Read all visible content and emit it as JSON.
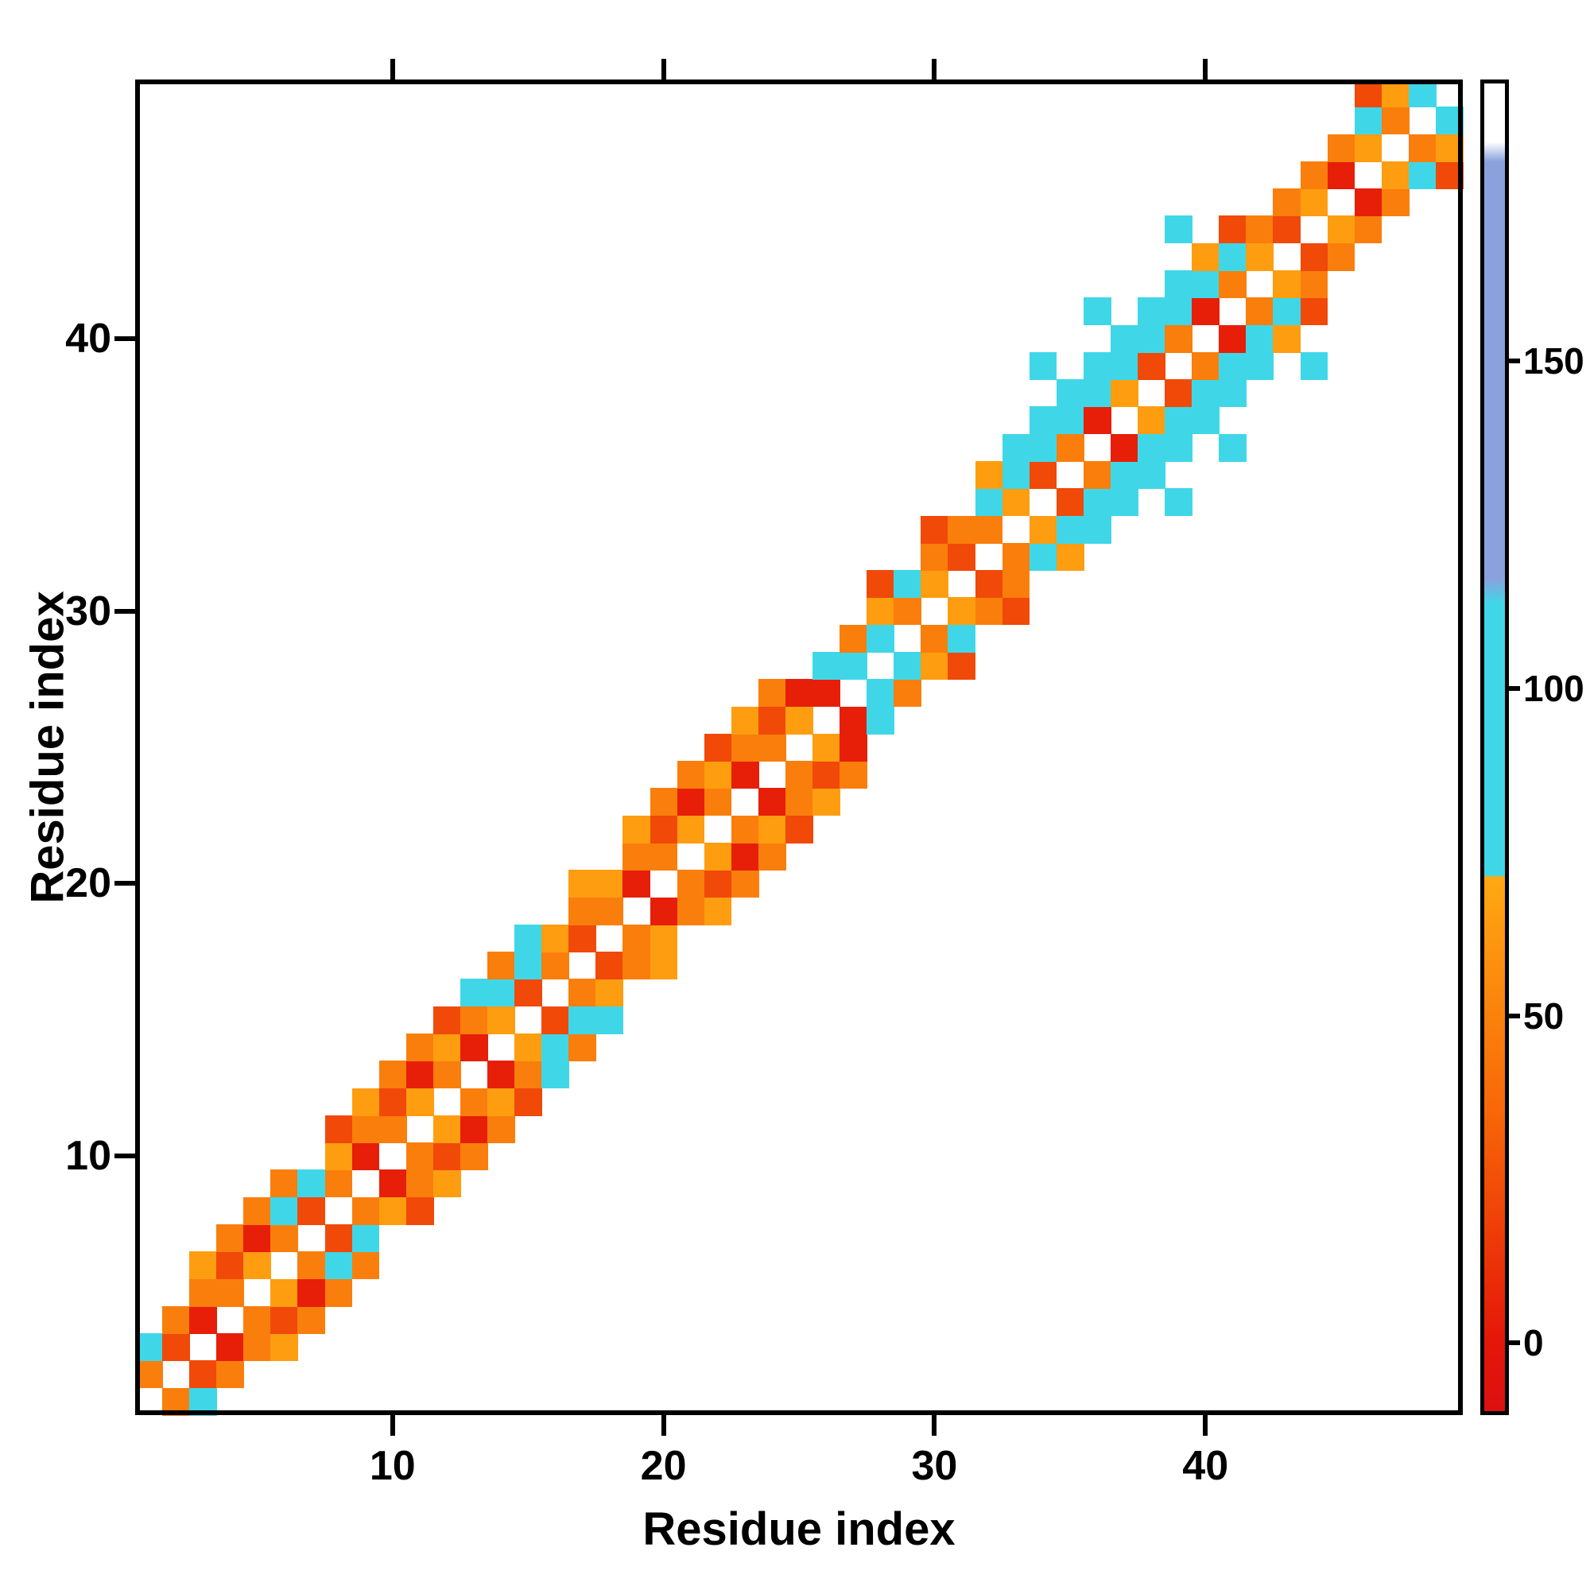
{
  "figure": {
    "background": "#ffffff",
    "x_axis": {
      "label": "Residue index",
      "ticks": [
        10,
        20,
        30,
        40
      ]
    },
    "y_axis": {
      "label": "Residue index",
      "ticks": [
        10,
        20,
        30,
        40
      ]
    },
    "colorbar": {
      "ticks": [
        0,
        50,
        100,
        150
      ],
      "vmin": -11,
      "vmax": 193,
      "stops": [
        [
          -11,
          "#dc1010"
        ],
        [
          0,
          "#e51708"
        ],
        [
          35,
          "#f76708"
        ],
        [
          71,
          "#ffa812"
        ],
        [
          71.4,
          "#3fd7e8"
        ],
        [
          113,
          "#3fd7e8"
        ],
        [
          117,
          "#8aa1dd"
        ],
        [
          181,
          "#8aa1dd"
        ],
        [
          184,
          "#ffffff"
        ],
        [
          193,
          "#ffffff"
        ]
      ]
    }
  },
  "chart_data": {
    "type": "heatmap",
    "title": "",
    "xlabel": "Residue index",
    "ylabel": "Residue index",
    "n_residues": 49,
    "x_range": [
      1,
      49
    ],
    "y_range": [
      1,
      49
    ],
    "symmetric": true,
    "diagonal": "empty",
    "legend_position": "right-colorbar",
    "grid": false,
    "cells": [
      [
        1,
        2,
        48
      ],
      [
        1,
        3,
        95
      ],
      [
        2,
        3,
        22
      ],
      [
        2,
        4,
        48
      ],
      [
        3,
        4,
        3
      ],
      [
        3,
        5,
        48
      ],
      [
        3,
        6,
        65
      ],
      [
        4,
        5,
        48
      ],
      [
        4,
        6,
        22
      ],
      [
        4,
        7,
        48
      ],
      [
        5,
        6,
        65
      ],
      [
        5,
        7,
        3
      ],
      [
        5,
        8,
        48
      ],
      [
        6,
        7,
        48
      ],
      [
        6,
        8,
        95
      ],
      [
        6,
        9,
        48
      ],
      [
        7,
        8,
        22
      ],
      [
        7,
        9,
        95
      ],
      [
        8,
        9,
        48
      ],
      [
        8,
        10,
        65
      ],
      [
        8,
        11,
        22
      ],
      [
        9,
        10,
        3
      ],
      [
        9,
        11,
        48
      ],
      [
        9,
        12,
        65
      ],
      [
        10,
        11,
        48
      ],
      [
        10,
        12,
        22
      ],
      [
        10,
        13,
        48
      ],
      [
        11,
        12,
        65
      ],
      [
        11,
        13,
        3
      ],
      [
        11,
        14,
        48
      ],
      [
        12,
        13,
        48
      ],
      [
        12,
        14,
        65
      ],
      [
        12,
        15,
        22
      ],
      [
        13,
        14,
        3
      ],
      [
        13,
        15,
        48
      ],
      [
        13,
        16,
        95
      ],
      [
        14,
        15,
        65
      ],
      [
        14,
        16,
        95
      ],
      [
        14,
        17,
        48
      ],
      [
        15,
        16,
        22
      ],
      [
        15,
        17,
        95
      ],
      [
        15,
        18,
        95
      ],
      [
        16,
        17,
        48
      ],
      [
        16,
        18,
        65
      ],
      [
        17,
        18,
        22
      ],
      [
        17,
        19,
        48
      ],
      [
        17,
        20,
        65
      ],
      [
        18,
        19,
        48
      ],
      [
        18,
        20,
        65
      ],
      [
        19,
        20,
        3
      ],
      [
        19,
        21,
        48
      ],
      [
        19,
        22,
        65
      ],
      [
        20,
        21,
        48
      ],
      [
        20,
        22,
        22
      ],
      [
        20,
        23,
        48
      ],
      [
        21,
        22,
        65
      ],
      [
        21,
        23,
        3
      ],
      [
        21,
        24,
        48
      ],
      [
        22,
        23,
        48
      ],
      [
        22,
        24,
        65
      ],
      [
        22,
        25,
        22
      ],
      [
        23,
        24,
        3
      ],
      [
        23,
        25,
        48
      ],
      [
        23,
        26,
        65
      ],
      [
        24,
        25,
        48
      ],
      [
        24,
        26,
        22
      ],
      [
        24,
        27,
        48
      ],
      [
        25,
        26,
        65
      ],
      [
        25,
        27,
        3
      ],
      [
        26,
        27,
        3
      ],
      [
        26,
        28,
        95
      ],
      [
        27,
        28,
        95
      ],
      [
        27,
        29,
        48
      ],
      [
        28,
        29,
        95
      ],
      [
        28,
        30,
        65
      ],
      [
        28,
        31,
        22
      ],
      [
        29,
        30,
        48
      ],
      [
        29,
        31,
        95
      ],
      [
        30,
        31,
        65
      ],
      [
        30,
        32,
        48
      ],
      [
        30,
        33,
        22
      ],
      [
        31,
        32,
        22
      ],
      [
        31,
        33,
        48
      ],
      [
        32,
        33,
        48
      ],
      [
        32,
        34,
        95
      ],
      [
        32,
        35,
        65
      ],
      [
        33,
        34,
        65
      ],
      [
        33,
        35,
        95
      ],
      [
        33,
        36,
        95
      ],
      [
        34,
        35,
        22
      ],
      [
        34,
        36,
        95
      ],
      [
        34,
        37,
        95
      ],
      [
        34,
        39,
        95
      ],
      [
        35,
        36,
        48
      ],
      [
        35,
        37,
        95
      ],
      [
        35,
        38,
        95
      ],
      [
        36,
        37,
        3
      ],
      [
        36,
        38,
        95
      ],
      [
        36,
        39,
        95
      ],
      [
        36,
        41,
        95
      ],
      [
        37,
        38,
        65
      ],
      [
        37,
        39,
        95
      ],
      [
        37,
        40,
        95
      ],
      [
        38,
        39,
        22
      ],
      [
        38,
        40,
        95
      ],
      [
        38,
        41,
        95
      ],
      [
        39,
        40,
        48
      ],
      [
        39,
        41,
        95
      ],
      [
        39,
        42,
        95
      ],
      [
        39,
        44,
        95
      ],
      [
        40,
        41,
        3
      ],
      [
        40,
        42,
        95
      ],
      [
        40,
        43,
        65
      ],
      [
        41,
        42,
        48
      ],
      [
        41,
        43,
        95
      ],
      [
        41,
        44,
        22
      ],
      [
        42,
        43,
        65
      ],
      [
        42,
        44,
        48
      ],
      [
        43,
        44,
        22
      ],
      [
        43,
        45,
        48
      ],
      [
        44,
        45,
        65
      ],
      [
        44,
        46,
        48
      ],
      [
        45,
        46,
        3
      ],
      [
        45,
        47,
        48
      ],
      [
        46,
        47,
        65
      ],
      [
        46,
        48,
        95
      ],
      [
        46,
        49,
        22
      ],
      [
        47,
        48,
        48
      ],
      [
        47,
        49,
        65
      ],
      [
        48,
        49,
        95
      ]
    ]
  }
}
